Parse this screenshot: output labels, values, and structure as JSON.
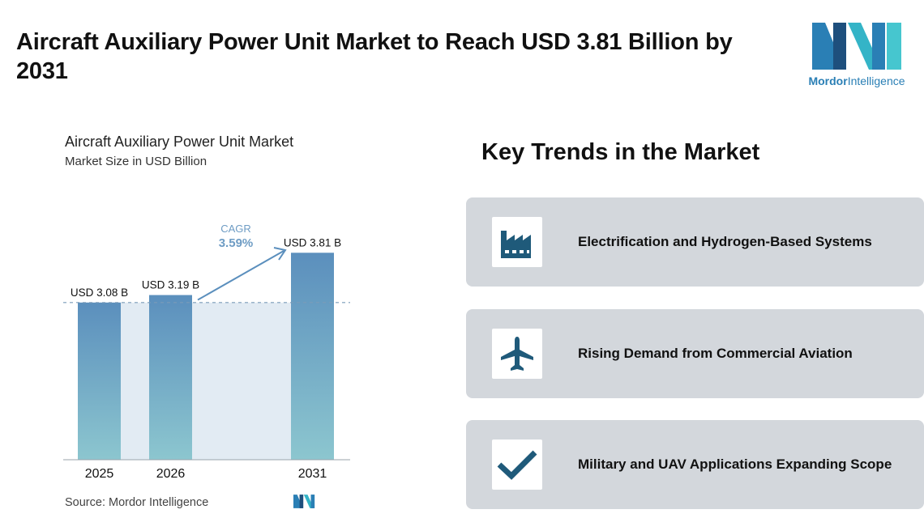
{
  "headline": "Aircraft Auxiliary Power Unit Market to Reach USD 3.81 Billion by 2031",
  "logo": {
    "brand_bold": "Mordor",
    "brand_light": "Intelligence"
  },
  "source": "Source:  Mordor Intelligence",
  "trends": {
    "title": "Key Trends in the Market",
    "items": [
      {
        "label": "Electrification and Hydrogen-Based Systems",
        "icon": "factory-icon"
      },
      {
        "label": "Rising Demand from Commercial Aviation",
        "icon": "airplane-icon"
      },
      {
        "label": "Military and UAV Applications Expanding Scope",
        "icon": "checkmark-icon"
      }
    ]
  },
  "colors": {
    "bar_top": "#5b8fbd",
    "bar_bottom": "#8cc6cf",
    "shade": "#e2ebf3",
    "accent": "#5b8fbd",
    "card": "#d3d7dc",
    "icon": "#1f5a7a"
  },
  "chart_data": {
    "type": "bar",
    "title": "Aircraft Auxiliary Power Unit Market",
    "subtitle": "Market Size in USD Billion",
    "categories": [
      "2025",
      "2026",
      "2031"
    ],
    "values": [
      3.08,
      3.19,
      3.81
    ],
    "data_labels": [
      "USD 3.08 B",
      "USD 3.19 B",
      "USD 3.81 B"
    ],
    "cagr_label": "CAGR",
    "cagr_value": "3.59%",
    "grid": false,
    "legend": "none"
  }
}
